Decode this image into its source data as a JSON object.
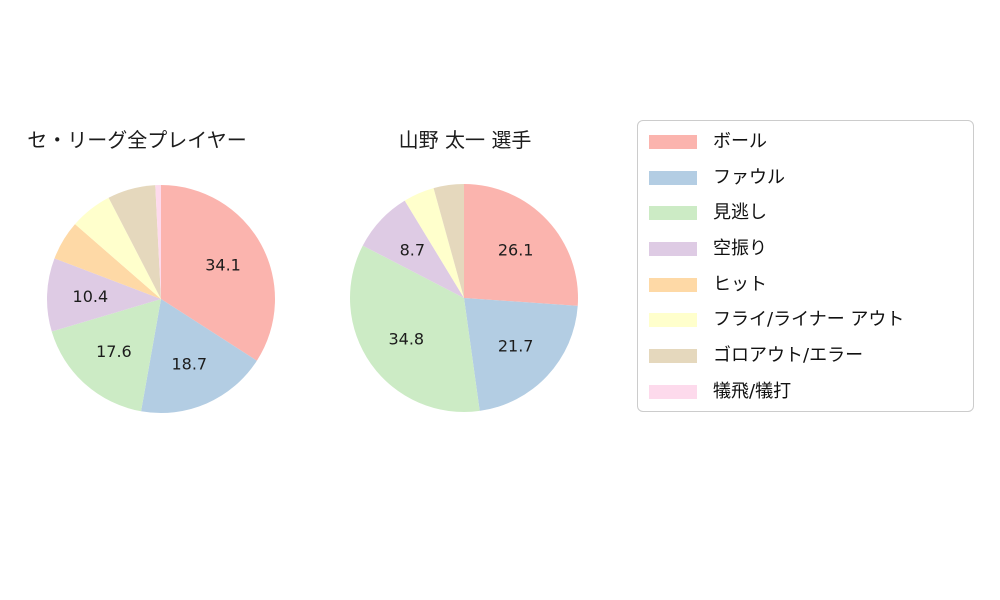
{
  "figure": {
    "background": "#ffffff",
    "text_color": "#1c1c1c"
  },
  "legend": {
    "position": "right",
    "border_color": "#cccccc",
    "items": [
      {
        "label": "ボール",
        "color": "#fbb4ae"
      },
      {
        "label": "ファウル",
        "color": "#b3cde3"
      },
      {
        "label": "見逃し",
        "color": "#ccebc5"
      },
      {
        "label": "空振り",
        "color": "#decbe4"
      },
      {
        "label": "ヒット",
        "color": "#fed9a6"
      },
      {
        "label": "フライ/ライナー アウト",
        "color": "#ffffcc"
      },
      {
        "label": "ゴロアウト/エラー",
        "color": "#e5d8bd"
      },
      {
        "label": "犠飛/犠打",
        "color": "#fddaec"
      }
    ]
  },
  "chart_data": [
    {
      "type": "pie",
      "title": "セ・リーグ全プレイヤー",
      "units": "percent",
      "start_angle_deg": 90,
      "direction": "clockwise",
      "label_distance": 0.62,
      "categories": [
        "ボール",
        "ファウル",
        "見逃し",
        "空振り",
        "ヒット",
        "フライ/ライナー アウト",
        "ゴロアウト/エラー",
        "犠飛/犠打"
      ],
      "values": [
        34.1,
        18.7,
        17.6,
        10.4,
        5.6,
        6.0,
        6.8,
        0.8
      ],
      "slice_labels": [
        "34.1",
        "18.7",
        "17.6",
        "10.4",
        "",
        "",
        "",
        ""
      ],
      "colors": [
        "#fbb4ae",
        "#b3cde3",
        "#ccebc5",
        "#decbe4",
        "#fed9a6",
        "#ffffcc",
        "#e5d8bd",
        "#fddaec"
      ]
    },
    {
      "type": "pie",
      "title": "山野 太一  選手",
      "units": "percent",
      "start_angle_deg": 90,
      "direction": "clockwise",
      "label_distance": 0.62,
      "categories": [
        "ボール",
        "ファウル",
        "見逃し",
        "空振り",
        "ヒット",
        "フライ/ライナー アウト",
        "ゴロアウト/エラー",
        "犠飛/犠打"
      ],
      "values": [
        26.1,
        21.7,
        34.8,
        8.7,
        0,
        4.4,
        4.3,
        0
      ],
      "slice_labels": [
        "26.1",
        "21.7",
        "34.8",
        "8.7",
        "",
        "",
        "",
        ""
      ],
      "colors": [
        "#fbb4ae",
        "#b3cde3",
        "#ccebc5",
        "#decbe4",
        "#fed9a6",
        "#ffffcc",
        "#e5d8bd",
        "#fddaec"
      ]
    }
  ]
}
